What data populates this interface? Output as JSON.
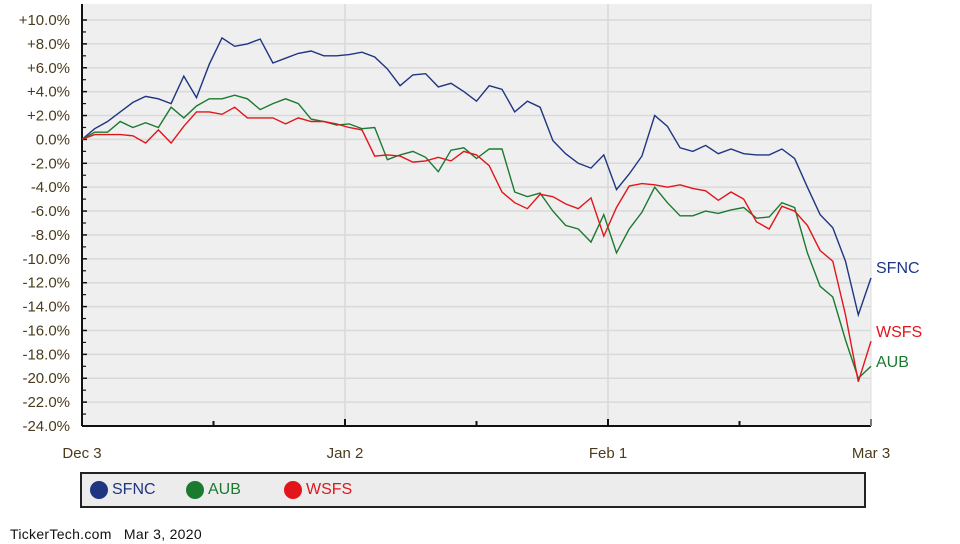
{
  "chart_data": {
    "type": "line",
    "title": "",
    "xlabel": "",
    "ylabel": "",
    "ylim": [
      -24.0,
      10.0
    ],
    "y_ticks": [
      "+10.0%",
      "+8.0%",
      "+6.0%",
      "+4.0%",
      "+2.0%",
      "0.0%",
      "-2.0%",
      "-4.0%",
      "-6.0%",
      "-8.0%",
      "-10.0%",
      "-12.0%",
      "-14.0%",
      "-16.0%",
      "-18.0%",
      "-20.0%",
      "-22.0%",
      "-24.0%"
    ],
    "x_ticks": [
      "Dec 3",
      "Jan 2",
      "Feb 1",
      "Mar 3"
    ],
    "grid": true,
    "legend_position": "bottom",
    "series": [
      {
        "name": "SFNC",
        "color": "#1f3582",
        "end_label": "SFNC",
        "values": [
          0.0,
          0.9,
          1.5,
          2.3,
          3.1,
          3.6,
          3.4,
          3.0,
          5.3,
          3.5,
          6.3,
          8.5,
          7.8,
          8.0,
          8.4,
          6.4,
          6.8,
          7.2,
          7.4,
          7.0,
          7.0,
          7.1,
          7.3,
          6.9,
          5.9,
          4.5,
          5.4,
          5.5,
          4.4,
          4.7,
          4.0,
          3.2,
          4.5,
          4.2,
          2.3,
          3.2,
          2.7,
          -0.1,
          -1.2,
          -2.0,
          -2.4,
          -1.3,
          -4.2,
          -2.9,
          -1.4,
          2.0,
          1.1,
          -0.7,
          -1.0,
          -0.5,
          -1.2,
          -0.8,
          -1.2,
          -1.3,
          -1.3,
          -0.8,
          -1.6,
          -4.0,
          -6.3,
          -7.4,
          -10.2,
          -14.7,
          -11.6
        ]
      },
      {
        "name": "AUB",
        "color": "#1b7a30",
        "end_label": "AUB",
        "values": [
          0.0,
          0.6,
          0.6,
          1.5,
          1.0,
          1.4,
          1.0,
          2.7,
          1.8,
          2.8,
          3.4,
          3.4,
          3.7,
          3.4,
          2.5,
          3.0,
          3.4,
          3.0,
          1.7,
          1.5,
          1.2,
          1.3,
          0.9,
          1.0,
          -1.7,
          -1.3,
          -1.0,
          -1.5,
          -2.7,
          -0.9,
          -0.7,
          -1.6,
          -0.8,
          -0.8,
          -4.4,
          -4.8,
          -4.5,
          -6.0,
          -7.2,
          -7.5,
          -8.6,
          -6.3,
          -9.5,
          -7.5,
          -6.1,
          -4.0,
          -5.3,
          -6.4,
          -6.4,
          -6.0,
          -6.2,
          -5.9,
          -5.7,
          -6.6,
          -6.5,
          -5.3,
          -5.7,
          -9.5,
          -12.3,
          -13.2,
          -16.8,
          -20.0,
          -19.0
        ]
      },
      {
        "name": "WSFS",
        "color": "#e0161b",
        "end_label": "WSFS",
        "values": [
          0.0,
          0.4,
          0.4,
          0.4,
          0.3,
          -0.3,
          0.8,
          -0.3,
          1.1,
          2.3,
          2.3,
          2.1,
          2.7,
          1.8,
          1.8,
          1.8,
          1.3,
          1.8,
          1.5,
          1.5,
          1.3,
          1.0,
          0.8,
          -1.4,
          -1.3,
          -1.4,
          -1.9,
          -1.8,
          -1.5,
          -1.8,
          -1.0,
          -1.3,
          -2.2,
          -4.4,
          -5.3,
          -5.8,
          -4.6,
          -4.8,
          -5.4,
          -5.8,
          -4.9,
          -8.1,
          -5.7,
          -3.9,
          -3.7,
          -3.8,
          -4.0,
          -3.8,
          -4.1,
          -4.3,
          -5.1,
          -4.4,
          -5.0,
          -6.9,
          -7.5,
          -5.6,
          -6.0,
          -7.2,
          -9.3,
          -10.2,
          -14.7,
          -20.3,
          -16.9
        ]
      }
    ]
  },
  "legend": {
    "items": [
      {
        "label": "SFNC",
        "color": "#1f3582"
      },
      {
        "label": "AUB",
        "color": "#1b7a30"
      },
      {
        "label": "WSFS",
        "color": "#e0161b"
      }
    ]
  },
  "footer": {
    "source": "TickerTech.com",
    "date": "Mar 3, 2020"
  }
}
